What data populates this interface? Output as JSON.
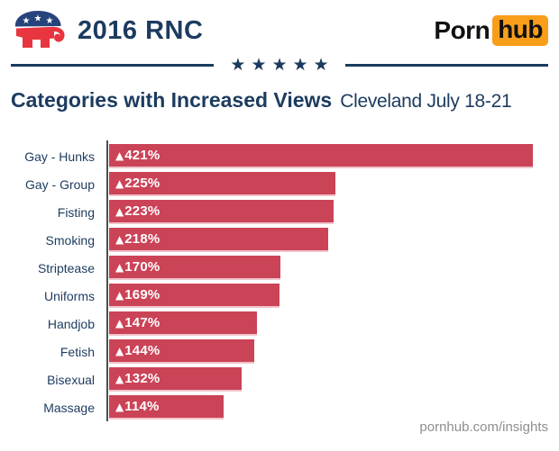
{
  "header": {
    "event_label": "2016 RNC",
    "elephant_icon": "gop-elephant-icon",
    "brand": {
      "word1": "Porn",
      "word2": "hub"
    }
  },
  "divider": {
    "stars": "★★★★★"
  },
  "title": {
    "main": "Categories with Increased Views",
    "subtitle": "Cleveland July 18-21"
  },
  "chart_data": {
    "type": "bar",
    "orientation": "horizontal",
    "title": "Categories with Increased Views",
    "subtitle": "Cleveland July 18-21",
    "categories": [
      "Gay - Hunks",
      "Gay - Group",
      "Fisting",
      "Smoking",
      "Striptease",
      "Uniforms",
      "Handjob",
      "Fetish",
      "Bisexual",
      "Massage"
    ],
    "values": [
      421,
      225,
      223,
      218,
      170,
      169,
      147,
      144,
      132,
      114
    ],
    "bar_labels": [
      "421%",
      "225%",
      "223%",
      "218%",
      "170%",
      "169%",
      "147%",
      "144%",
      "132%",
      "114%"
    ],
    "marker": "▲",
    "xlim": [
      0,
      421
    ],
    "grid": false,
    "legend": false,
    "bar_color": "#cb4357",
    "bar_shadow_color": "#f0c4cc",
    "axis_color": "#4f4f4f",
    "label_color": "#1c3b5f"
  },
  "footer": {
    "url": "pornhub.com/insights"
  },
  "colors": {
    "navy": "#1c3b5f",
    "bar_red": "#cb4357",
    "bar_shadow_pink": "#f0c4cc",
    "axis_gray": "#4f4f4f",
    "brand_orange": "#f89e1b",
    "footer_gray": "#8f8f8f",
    "gop_blue": "#26437b",
    "gop_red": "#e8353f",
    "black": "#111111",
    "background": "#ffffff"
  }
}
